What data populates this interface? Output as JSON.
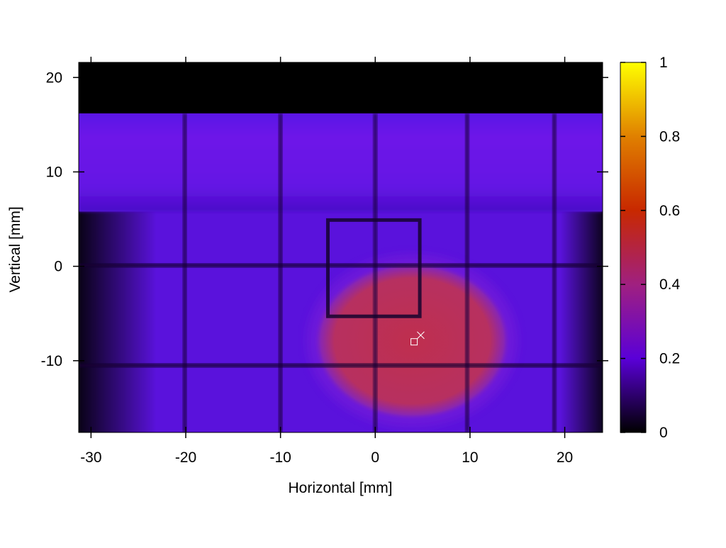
{
  "chart_data": {
    "type": "heatmap",
    "title": "",
    "xlabel": "Horizontal [mm]",
    "ylabel": "Vertical [mm]",
    "xlim": [
      -31.3,
      24.0
    ],
    "ylim": [
      -17.6,
      21.6
    ],
    "xticks": [
      {
        "value": -30,
        "label": "-30"
      },
      {
        "value": -20,
        "label": "-20"
      },
      {
        "value": -10,
        "label": "-10"
      },
      {
        "value": 0,
        "label": "0"
      },
      {
        "value": 10,
        "label": "10"
      },
      {
        "value": 20,
        "label": "20"
      }
    ],
    "yticks": [
      {
        "value": -10,
        "label": "-10"
      },
      {
        "value": 0,
        "label": "0"
      },
      {
        "value": 10,
        "label": "10"
      },
      {
        "value": 20,
        "label": "20"
      }
    ],
    "colorbar": {
      "range": [
        0,
        1
      ],
      "ticks": [
        {
          "value": 0,
          "label": "0"
        },
        {
          "value": 0.2,
          "label": "0.2"
        },
        {
          "value": 0.4,
          "label": "0.4"
        },
        {
          "value": 0.6,
          "label": "0.6"
        },
        {
          "value": 0.8,
          "label": "0.8"
        },
        {
          "value": 1,
          "label": "1"
        }
      ],
      "colormap": [
        "#000000",
        "#5a00d8",
        "#a02080",
        "#c82800",
        "#e08000",
        "#ffff00"
      ]
    },
    "intensity_field": {
      "background_level": 0.22,
      "top_band": {
        "y_from": 5.8,
        "y_to": 16.2,
        "level": 0.3
      },
      "dark_region_above_y": 16.2,
      "central_spot": {
        "center": [
          3.9,
          -7.9
        ],
        "radius_x": 10.5,
        "radius_y": 8.5,
        "peak_level": 0.45
      },
      "grid_lines_x": [
        -20.1,
        -10.0,
        0.0,
        9.7,
        18.9
      ],
      "grid_lines_y": [
        -10.5,
        0.1
      ],
      "window_frame": {
        "x": [
          -5.0,
          4.7
        ],
        "y": [
          -5.3,
          4.9
        ]
      }
    },
    "markers": [
      {
        "symbol": "square",
        "x": 4.1,
        "y": -8.0
      },
      {
        "symbol": "cross",
        "x": 4.8,
        "y": -7.3
      }
    ],
    "grid": false,
    "legend": "none"
  }
}
